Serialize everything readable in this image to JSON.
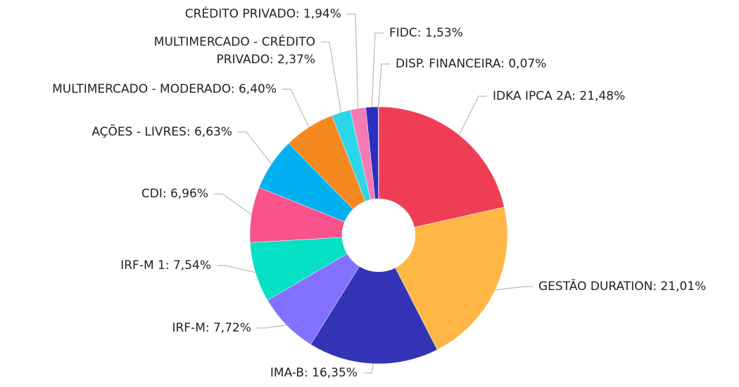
{
  "chart_data": {
    "type": "donut",
    "values": [
      21.48,
      21.01,
      16.35,
      7.72,
      7.54,
      6.96,
      6.63,
      6.4,
      2.37,
      1.94,
      1.53,
      0.07
    ],
    "value_labels": [
      "IDKA IPCA 2A: 21,48%",
      "GESTÃO DURATION: 21,01%",
      "IMA-B: 16,35%",
      "IRF-M: 7,72%",
      "IRF-M 1: 7,54%",
      "CDI: 6,96%",
      "AÇÕES - LIVRES: 6,63%",
      "MULTIMERCADO - MODERADO: 6,40%",
      "MULTIMERCADO - CRÉDITO\nPRIVADO: 2,37%",
      "CRÉDITO PRIVADO: 1,94%",
      "FIDC: 1,53%",
      "DISP. FINANCEIRA: 0,07%"
    ],
    "colors": [
      "#ef3d56",
      "#ffb845",
      "#3333b5",
      "#8470ff",
      "#06e0c5",
      "#fa528a",
      "#00b0f0",
      "#f5891f",
      "#2ad6e8",
      "#f47ab6",
      "#2b2fc0",
      "#1f2a9a"
    ]
  }
}
